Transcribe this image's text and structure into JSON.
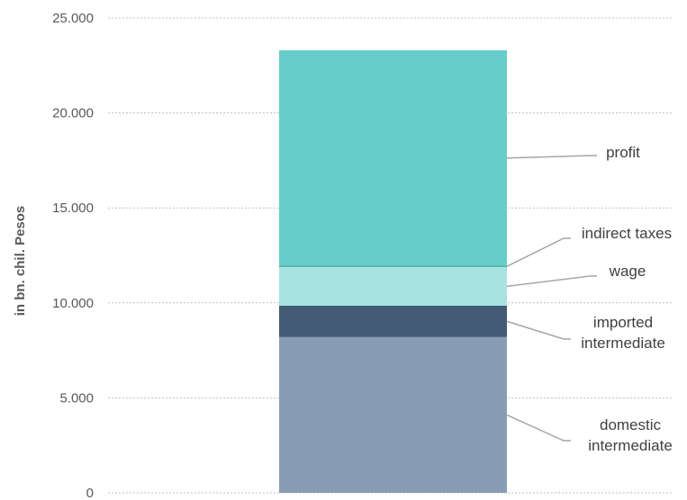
{
  "chart_data": {
    "type": "bar",
    "stacked": true,
    "ylabel": "in bn. chil. Pesos",
    "ylim": [
      0,
      25000
    ],
    "y_ticks": [
      {
        "value": 0,
        "label": "0"
      },
      {
        "value": 5000,
        "label": "5.000"
      },
      {
        "value": 10000,
        "label": "10.000"
      },
      {
        "value": 15000,
        "label": "15.000"
      },
      {
        "value": 20000,
        "label": "20.000"
      },
      {
        "value": 25000,
        "label": "25.000"
      }
    ],
    "grid": true,
    "segments": [
      {
        "name": "domestic intermediate",
        "label_lines": [
          "domestic",
          "intermediate"
        ],
        "value": 8200,
        "color": "#889db5"
      },
      {
        "name": "imported intermediate",
        "label_lines": [
          "imported",
          "intermediate"
        ],
        "value": 1650,
        "color": "#445b75"
      },
      {
        "name": "wage",
        "label_lines": [
          "wage"
        ],
        "value": 2050,
        "color": "#a6e3e1"
      },
      {
        "name": "indirect taxes",
        "label_lines": [
          "indirect taxes"
        ],
        "value": 50,
        "color": "#2d8a85"
      },
      {
        "name": "profit",
        "label_lines": [
          "profit"
        ],
        "value": 11350,
        "color": "#66cdca"
      }
    ]
  }
}
